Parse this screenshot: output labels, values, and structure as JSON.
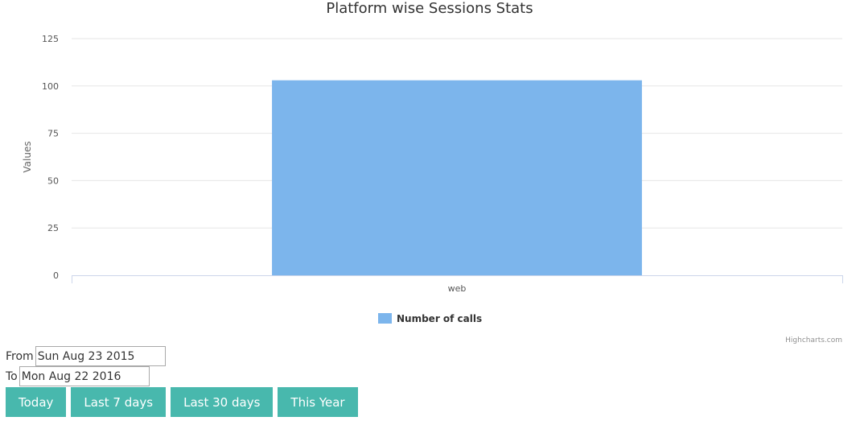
{
  "chart_data": {
    "type": "bar",
    "title": "Platform wise Sessions Stats",
    "categories": [
      "web"
    ],
    "series": [
      {
        "name": "Number of calls",
        "values": [
          103
        ],
        "color": "#7cb5ec"
      }
    ],
    "ylabel": "Values",
    "ylim": [
      0,
      125
    ],
    "yticks": [
      "0",
      "25",
      "50",
      "75",
      "100",
      "125"
    ],
    "grid": true,
    "legend": "bottom-center"
  },
  "credits": "Highcharts.com",
  "controls": {
    "from_label": "From",
    "from_value": "Sun Aug 23 2015",
    "to_label": "To",
    "to_value": "Mon Aug 22 2016",
    "buttons": [
      "Today",
      "Last 7 days",
      "Last 30 days",
      "This Year"
    ]
  }
}
